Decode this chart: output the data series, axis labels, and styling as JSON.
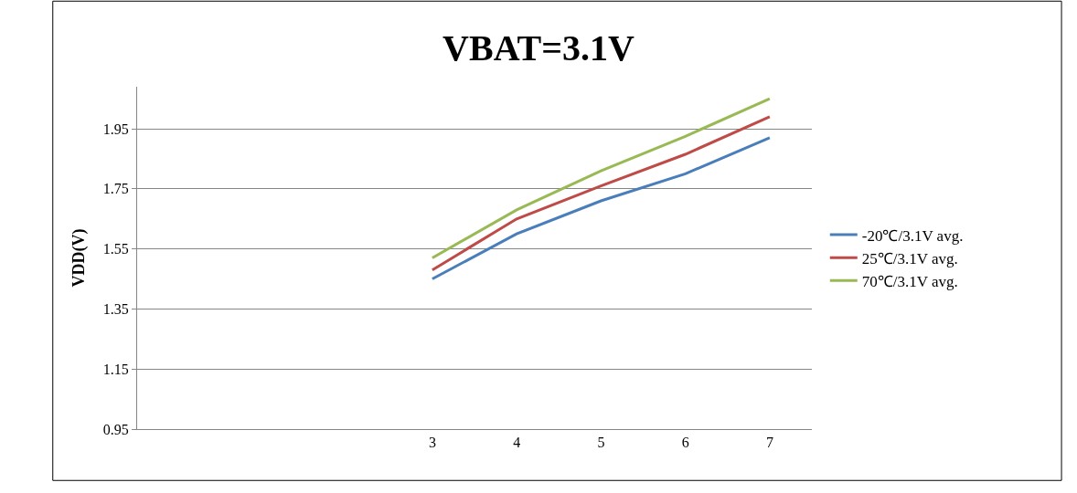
{
  "chart_data": {
    "type": "line",
    "title": "VBAT=3.1V",
    "ylabel": "VDD(V)",
    "categories": [
      null,
      null,
      null,
      "3",
      "4",
      "5",
      "6",
      "7"
    ],
    "series": [
      {
        "name": "-20℃/3.1V avg.",
        "color": "#4a7ebb",
        "values": [
          null,
          null,
          null,
          1.45,
          1.6,
          1.71,
          1.8,
          1.92
        ]
      },
      {
        "name": "25℃/3.1V avg.",
        "color": "#be4b48",
        "values": [
          null,
          null,
          null,
          1.48,
          1.65,
          1.76,
          1.865,
          1.99
        ]
      },
      {
        "name": "70℃/3.1V avg.",
        "color": "#98b954",
        "values": [
          null,
          null,
          null,
          1.52,
          1.68,
          1.81,
          1.925,
          2.05
        ]
      }
    ],
    "ylim": [
      0.95,
      2.09
    ],
    "yticks": [
      0.95,
      1.15,
      1.35,
      1.55,
      1.75,
      1.95
    ],
    "grid": "y",
    "legend": "right",
    "marker": "none",
    "line_style": "solid"
  }
}
